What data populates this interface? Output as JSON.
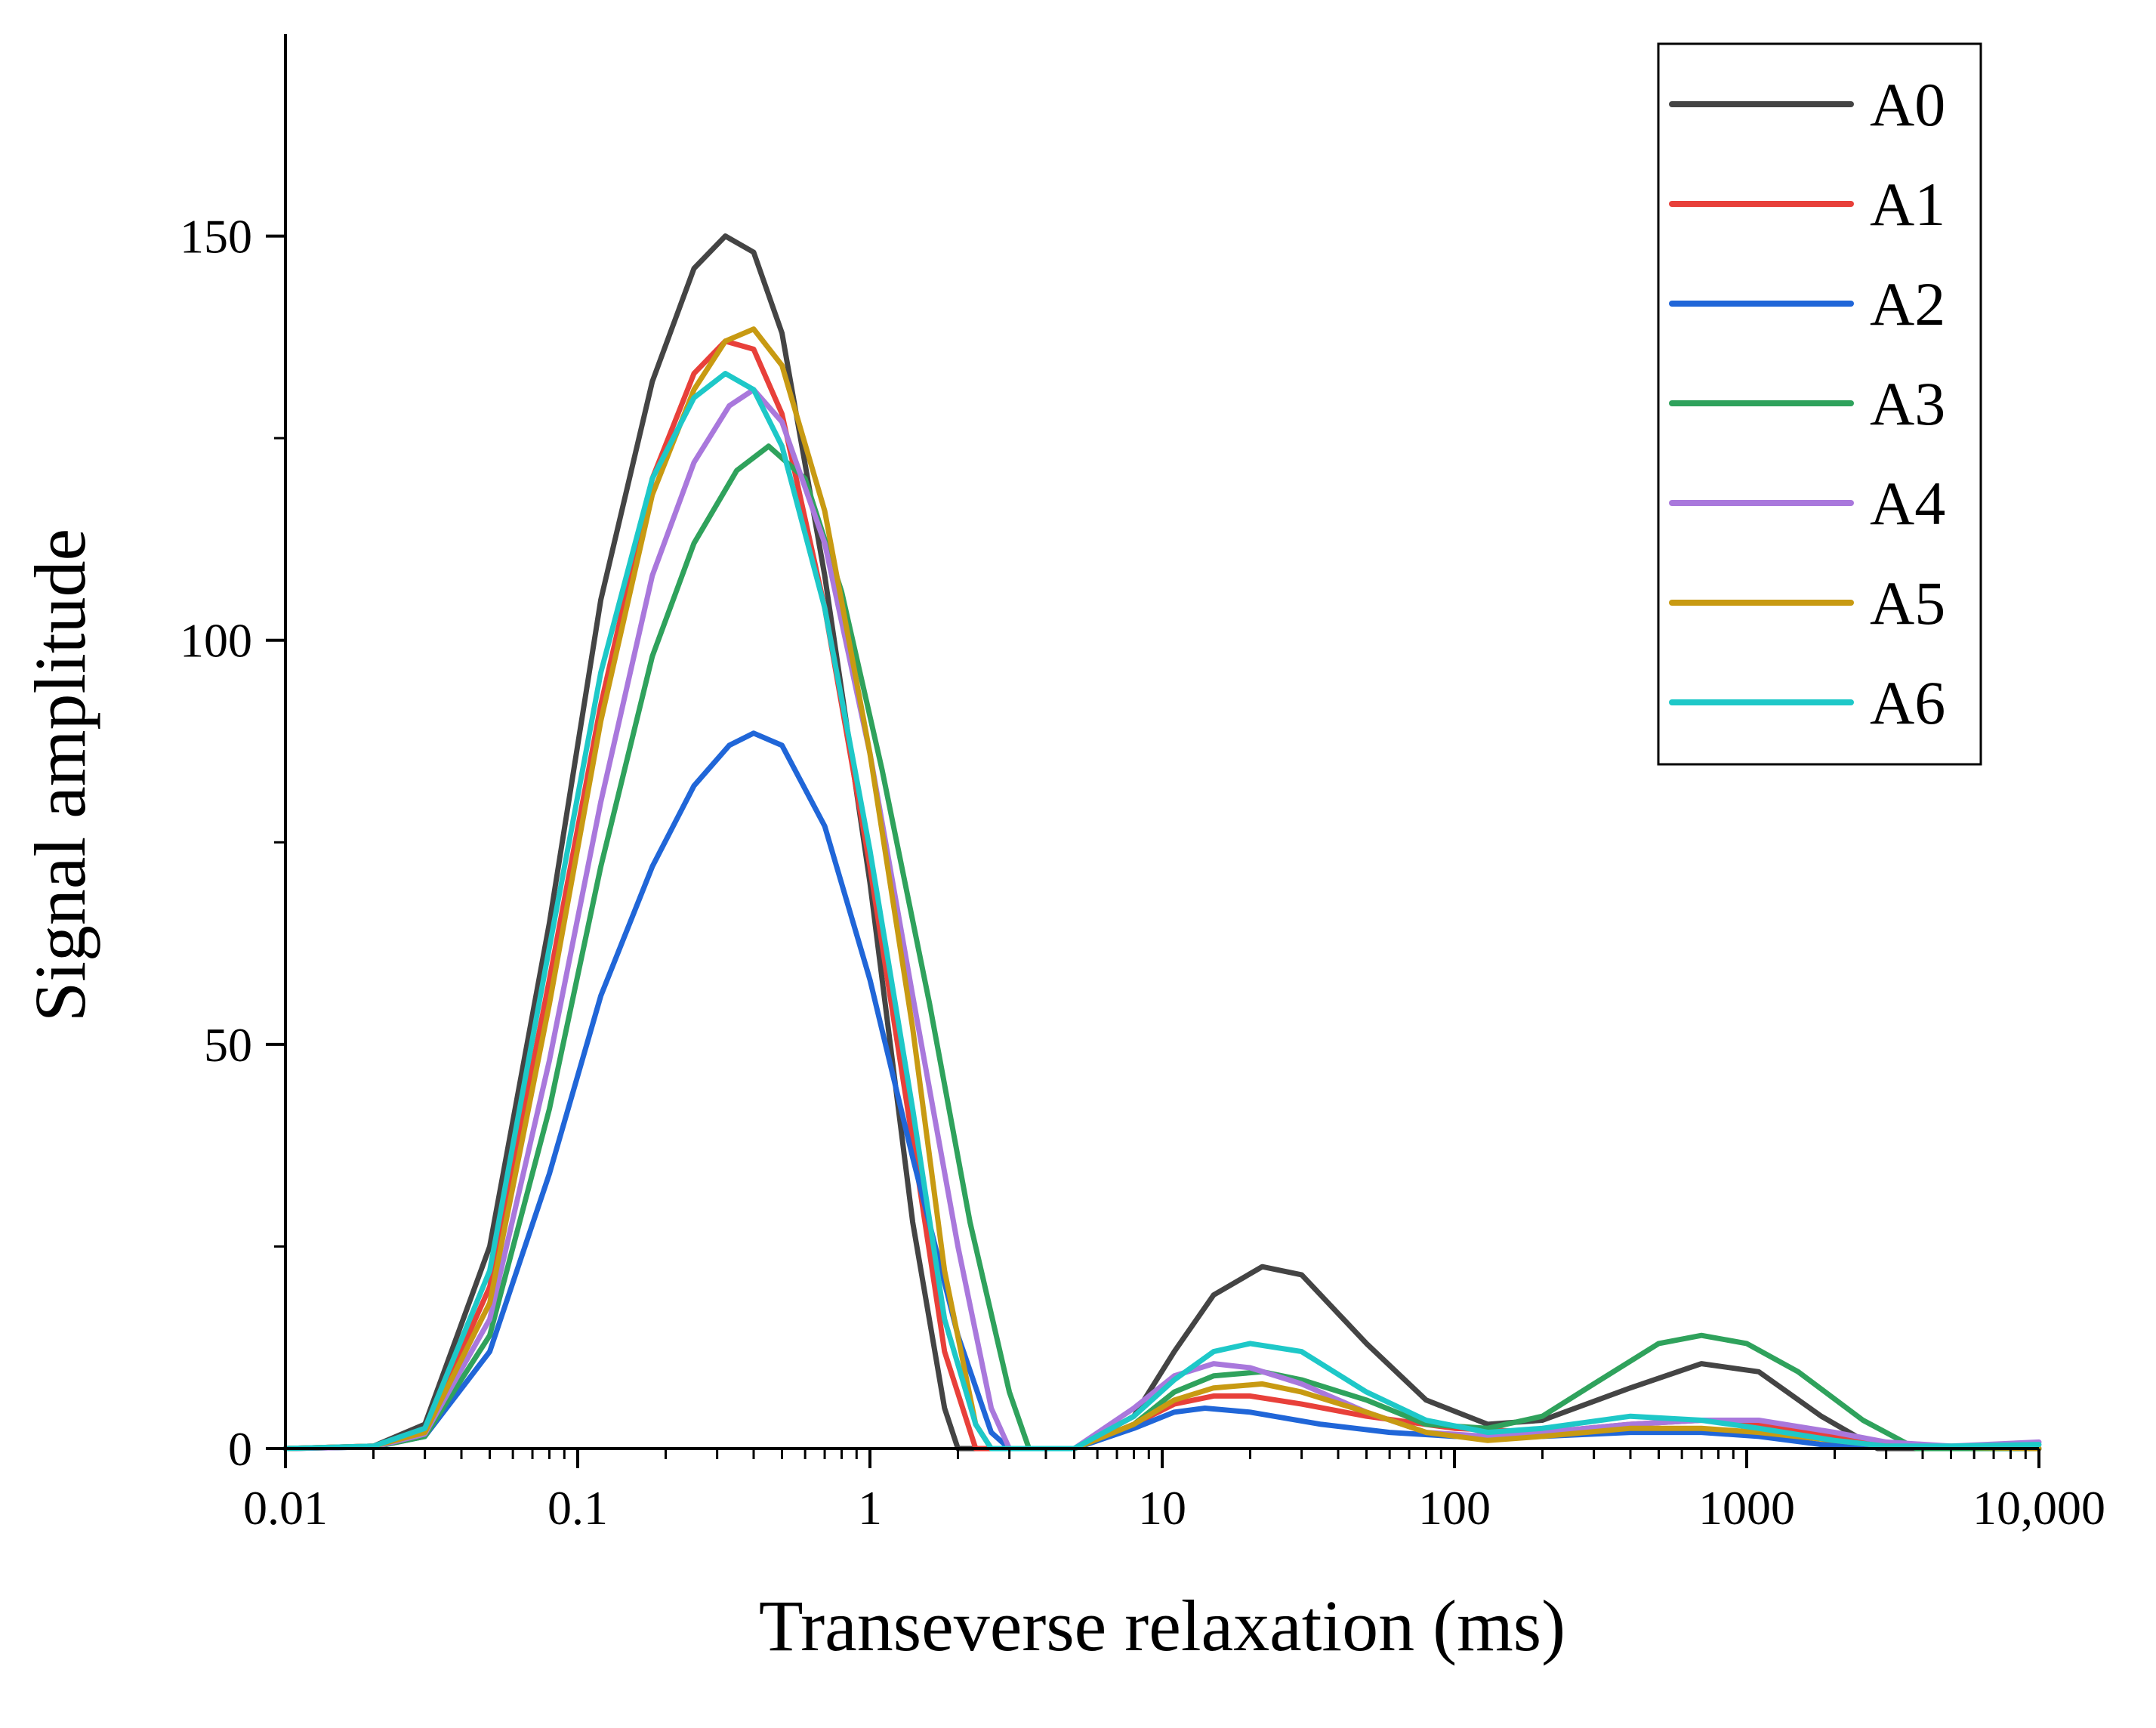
{
  "chart_data": {
    "type": "line",
    "title": "",
    "xlabel": "Transeverse relaxation (ms)",
    "ylabel": "Signal amplitude",
    "xscale": "log",
    "xlim": [
      0.01,
      10000
    ],
    "ylim": [
      0,
      175
    ],
    "x_ticks": [
      {
        "value": 0.01,
        "label": "0.01"
      },
      {
        "value": 0.1,
        "label": "0.1"
      },
      {
        "value": 1,
        "label": "1"
      },
      {
        "value": 10,
        "label": "10"
      },
      {
        "value": 100,
        "label": "100"
      },
      {
        "value": 1000,
        "label": "1000"
      },
      {
        "value": 10000,
        "label": "10,000"
      }
    ],
    "y_ticks": [
      {
        "value": 0,
        "label": "0"
      },
      {
        "value": 50,
        "label": "50"
      },
      {
        "value": 100,
        "label": "100"
      },
      {
        "value": 150,
        "label": "150"
      }
    ],
    "y_minor_ticks": [
      25,
      75,
      125
    ],
    "legend_position": "top-right",
    "series": [
      {
        "name": "A0",
        "color": "#444444",
        "points": [
          [
            0.01,
            0
          ],
          [
            0.02,
            0.3
          ],
          [
            0.03,
            3
          ],
          [
            0.05,
            25
          ],
          [
            0.08,
            65
          ],
          [
            0.12,
            105
          ],
          [
            0.18,
            132
          ],
          [
            0.25,
            146
          ],
          [
            0.32,
            150
          ],
          [
            0.4,
            148
          ],
          [
            0.5,
            138
          ],
          [
            0.7,
            108
          ],
          [
            1.0,
            70
          ],
          [
            1.4,
            28
          ],
          [
            1.8,
            5
          ],
          [
            2.0,
            0
          ],
          [
            5,
            0
          ],
          [
            8,
            4
          ],
          [
            11,
            12
          ],
          [
            15,
            19
          ],
          [
            22,
            22.5
          ],
          [
            30,
            21.5
          ],
          [
            50,
            13
          ],
          [
            80,
            6
          ],
          [
            130,
            3
          ],
          [
            200,
            3.5
          ],
          [
            400,
            7.5
          ],
          [
            700,
            10.5
          ],
          [
            1100,
            9.5
          ],
          [
            1800,
            4
          ],
          [
            2800,
            0
          ],
          [
            10000,
            0
          ]
        ]
      },
      {
        "name": "A1",
        "color": "#e8403a",
        "points": [
          [
            0.01,
            0
          ],
          [
            0.02,
            0.3
          ],
          [
            0.03,
            2
          ],
          [
            0.05,
            20
          ],
          [
            0.08,
            58
          ],
          [
            0.12,
            92
          ],
          [
            0.18,
            120
          ],
          [
            0.25,
            133
          ],
          [
            0.32,
            137
          ],
          [
            0.4,
            136
          ],
          [
            0.5,
            128
          ],
          [
            0.7,
            104
          ],
          [
            1.0,
            72
          ],
          [
            1.4,
            38
          ],
          [
            1.8,
            12
          ],
          [
            2.3,
            0
          ],
          [
            5,
            0
          ],
          [
            8,
            3
          ],
          [
            11,
            5.5
          ],
          [
            15,
            6.5
          ],
          [
            20,
            6.5
          ],
          [
            30,
            5.5
          ],
          [
            50,
            4
          ],
          [
            100,
            2.5
          ],
          [
            200,
            2
          ],
          [
            400,
            3
          ],
          [
            700,
            3.5
          ],
          [
            1100,
            3
          ],
          [
            2000,
            1.5
          ],
          [
            3000,
            0.5
          ],
          [
            10000,
            0
          ]
        ]
      },
      {
        "name": "A2",
        "color": "#2066d8",
        "points": [
          [
            0.01,
            0
          ],
          [
            0.02,
            0.2
          ],
          [
            0.03,
            1.5
          ],
          [
            0.05,
            12
          ],
          [
            0.08,
            34
          ],
          [
            0.12,
            56
          ],
          [
            0.18,
            72
          ],
          [
            0.25,
            82
          ],
          [
            0.33,
            87
          ],
          [
            0.4,
            88.5
          ],
          [
            0.5,
            87
          ],
          [
            0.7,
            77
          ],
          [
            1.0,
            58
          ],
          [
            1.4,
            36
          ],
          [
            2.0,
            14
          ],
          [
            2.6,
            2
          ],
          [
            3.0,
            0
          ],
          [
            5,
            0
          ],
          [
            8,
            2.5
          ],
          [
            11,
            4.5
          ],
          [
            14,
            5
          ],
          [
            20,
            4.5
          ],
          [
            35,
            3
          ],
          [
            60,
            2
          ],
          [
            100,
            1.5
          ],
          [
            200,
            1.5
          ],
          [
            400,
            2
          ],
          [
            700,
            2
          ],
          [
            1100,
            1.5
          ],
          [
            1800,
            0.5
          ],
          [
            10000,
            0
          ]
        ]
      },
      {
        "name": "A3",
        "color": "#2fa25c",
        "points": [
          [
            0.01,
            0
          ],
          [
            0.02,
            0.2
          ],
          [
            0.03,
            1.5
          ],
          [
            0.05,
            14
          ],
          [
            0.08,
            42
          ],
          [
            0.12,
            72
          ],
          [
            0.18,
            98
          ],
          [
            0.25,
            112
          ],
          [
            0.35,
            121
          ],
          [
            0.45,
            124
          ],
          [
            0.6,
            120
          ],
          [
            0.8,
            106
          ],
          [
            1.1,
            84
          ],
          [
            1.6,
            55
          ],
          [
            2.2,
            28
          ],
          [
            3.0,
            7
          ],
          [
            3.5,
            0
          ],
          [
            5,
            0
          ],
          [
            8,
            3
          ],
          [
            11,
            7
          ],
          [
            15,
            9
          ],
          [
            22,
            9.5
          ],
          [
            30,
            8.5
          ],
          [
            50,
            6
          ],
          [
            80,
            3
          ],
          [
            130,
            2.5
          ],
          [
            200,
            4
          ],
          [
            300,
            8
          ],
          [
            500,
            13
          ],
          [
            700,
            14
          ],
          [
            1000,
            13
          ],
          [
            1500,
            9.5
          ],
          [
            2500,
            3.5
          ],
          [
            3800,
            0
          ],
          [
            10000,
            0
          ]
        ]
      },
      {
        "name": "A4",
        "color": "#a978dc",
        "points": [
          [
            0.01,
            0
          ],
          [
            0.02,
            0.2
          ],
          [
            0.03,
            1.8
          ],
          [
            0.05,
            16
          ],
          [
            0.08,
            48
          ],
          [
            0.12,
            80
          ],
          [
            0.18,
            108
          ],
          [
            0.25,
            122
          ],
          [
            0.33,
            129
          ],
          [
            0.4,
            131
          ],
          [
            0.5,
            127
          ],
          [
            0.7,
            112
          ],
          [
            1.0,
            86
          ],
          [
            1.4,
            56
          ],
          [
            2.0,
            25
          ],
          [
            2.6,
            5
          ],
          [
            3.0,
            0
          ],
          [
            5,
            0
          ],
          [
            8,
            5
          ],
          [
            11,
            9
          ],
          [
            15,
            10.5
          ],
          [
            20,
            10
          ],
          [
            30,
            8
          ],
          [
            50,
            4.5
          ],
          [
            80,
            2
          ],
          [
            130,
            1.5
          ],
          [
            200,
            2
          ],
          [
            400,
            3
          ],
          [
            700,
            3.5
          ],
          [
            1100,
            3.5
          ],
          [
            2000,
            2
          ],
          [
            3000,
            0.8
          ],
          [
            5000,
            0.3
          ],
          [
            10000,
            0.8
          ]
        ]
      },
      {
        "name": "A5",
        "color": "#c89a12",
        "points": [
          [
            0.01,
            0
          ],
          [
            0.02,
            0.3
          ],
          [
            0.03,
            2
          ],
          [
            0.05,
            18
          ],
          [
            0.08,
            55
          ],
          [
            0.12,
            90
          ],
          [
            0.18,
            118
          ],
          [
            0.25,
            131
          ],
          [
            0.32,
            137
          ],
          [
            0.4,
            138.5
          ],
          [
            0.5,
            134
          ],
          [
            0.7,
            116
          ],
          [
            1.0,
            86
          ],
          [
            1.4,
            52
          ],
          [
            1.8,
            22
          ],
          [
            2.3,
            3
          ],
          [
            2.6,
            0
          ],
          [
            5,
            0
          ],
          [
            8,
            3
          ],
          [
            11,
            6
          ],
          [
            15,
            7.5
          ],
          [
            22,
            8
          ],
          [
            30,
            7
          ],
          [
            50,
            4.5
          ],
          [
            80,
            2
          ],
          [
            130,
            1
          ],
          [
            200,
            1.5
          ],
          [
            400,
            2.5
          ],
          [
            700,
            2.5
          ],
          [
            1100,
            2
          ],
          [
            2000,
            1
          ],
          [
            3000,
            0.3
          ],
          [
            10000,
            0
          ]
        ]
      },
      {
        "name": "A6",
        "color": "#1ec8c8",
        "points": [
          [
            0.01,
            0
          ],
          [
            0.02,
            0.3
          ],
          [
            0.03,
            2.5
          ],
          [
            0.05,
            22
          ],
          [
            0.08,
            62
          ],
          [
            0.12,
            96
          ],
          [
            0.18,
            120
          ],
          [
            0.25,
            130
          ],
          [
            0.32,
            133
          ],
          [
            0.4,
            131
          ],
          [
            0.5,
            124
          ],
          [
            0.7,
            104
          ],
          [
            1.0,
            74
          ],
          [
            1.4,
            42
          ],
          [
            1.8,
            16
          ],
          [
            2.3,
            3
          ],
          [
            2.6,
            0
          ],
          [
            5,
            0
          ],
          [
            8,
            4
          ],
          [
            11,
            8.5
          ],
          [
            15,
            12
          ],
          [
            20,
            13
          ],
          [
            30,
            12
          ],
          [
            50,
            7
          ],
          [
            80,
            3.5
          ],
          [
            130,
            2
          ],
          [
            200,
            2.5
          ],
          [
            400,
            4
          ],
          [
            700,
            3.5
          ],
          [
            1100,
            2.5
          ],
          [
            2000,
            1
          ],
          [
            3000,
            0.3
          ],
          [
            5000,
            0.3
          ],
          [
            10000,
            0.5
          ]
        ]
      }
    ]
  }
}
